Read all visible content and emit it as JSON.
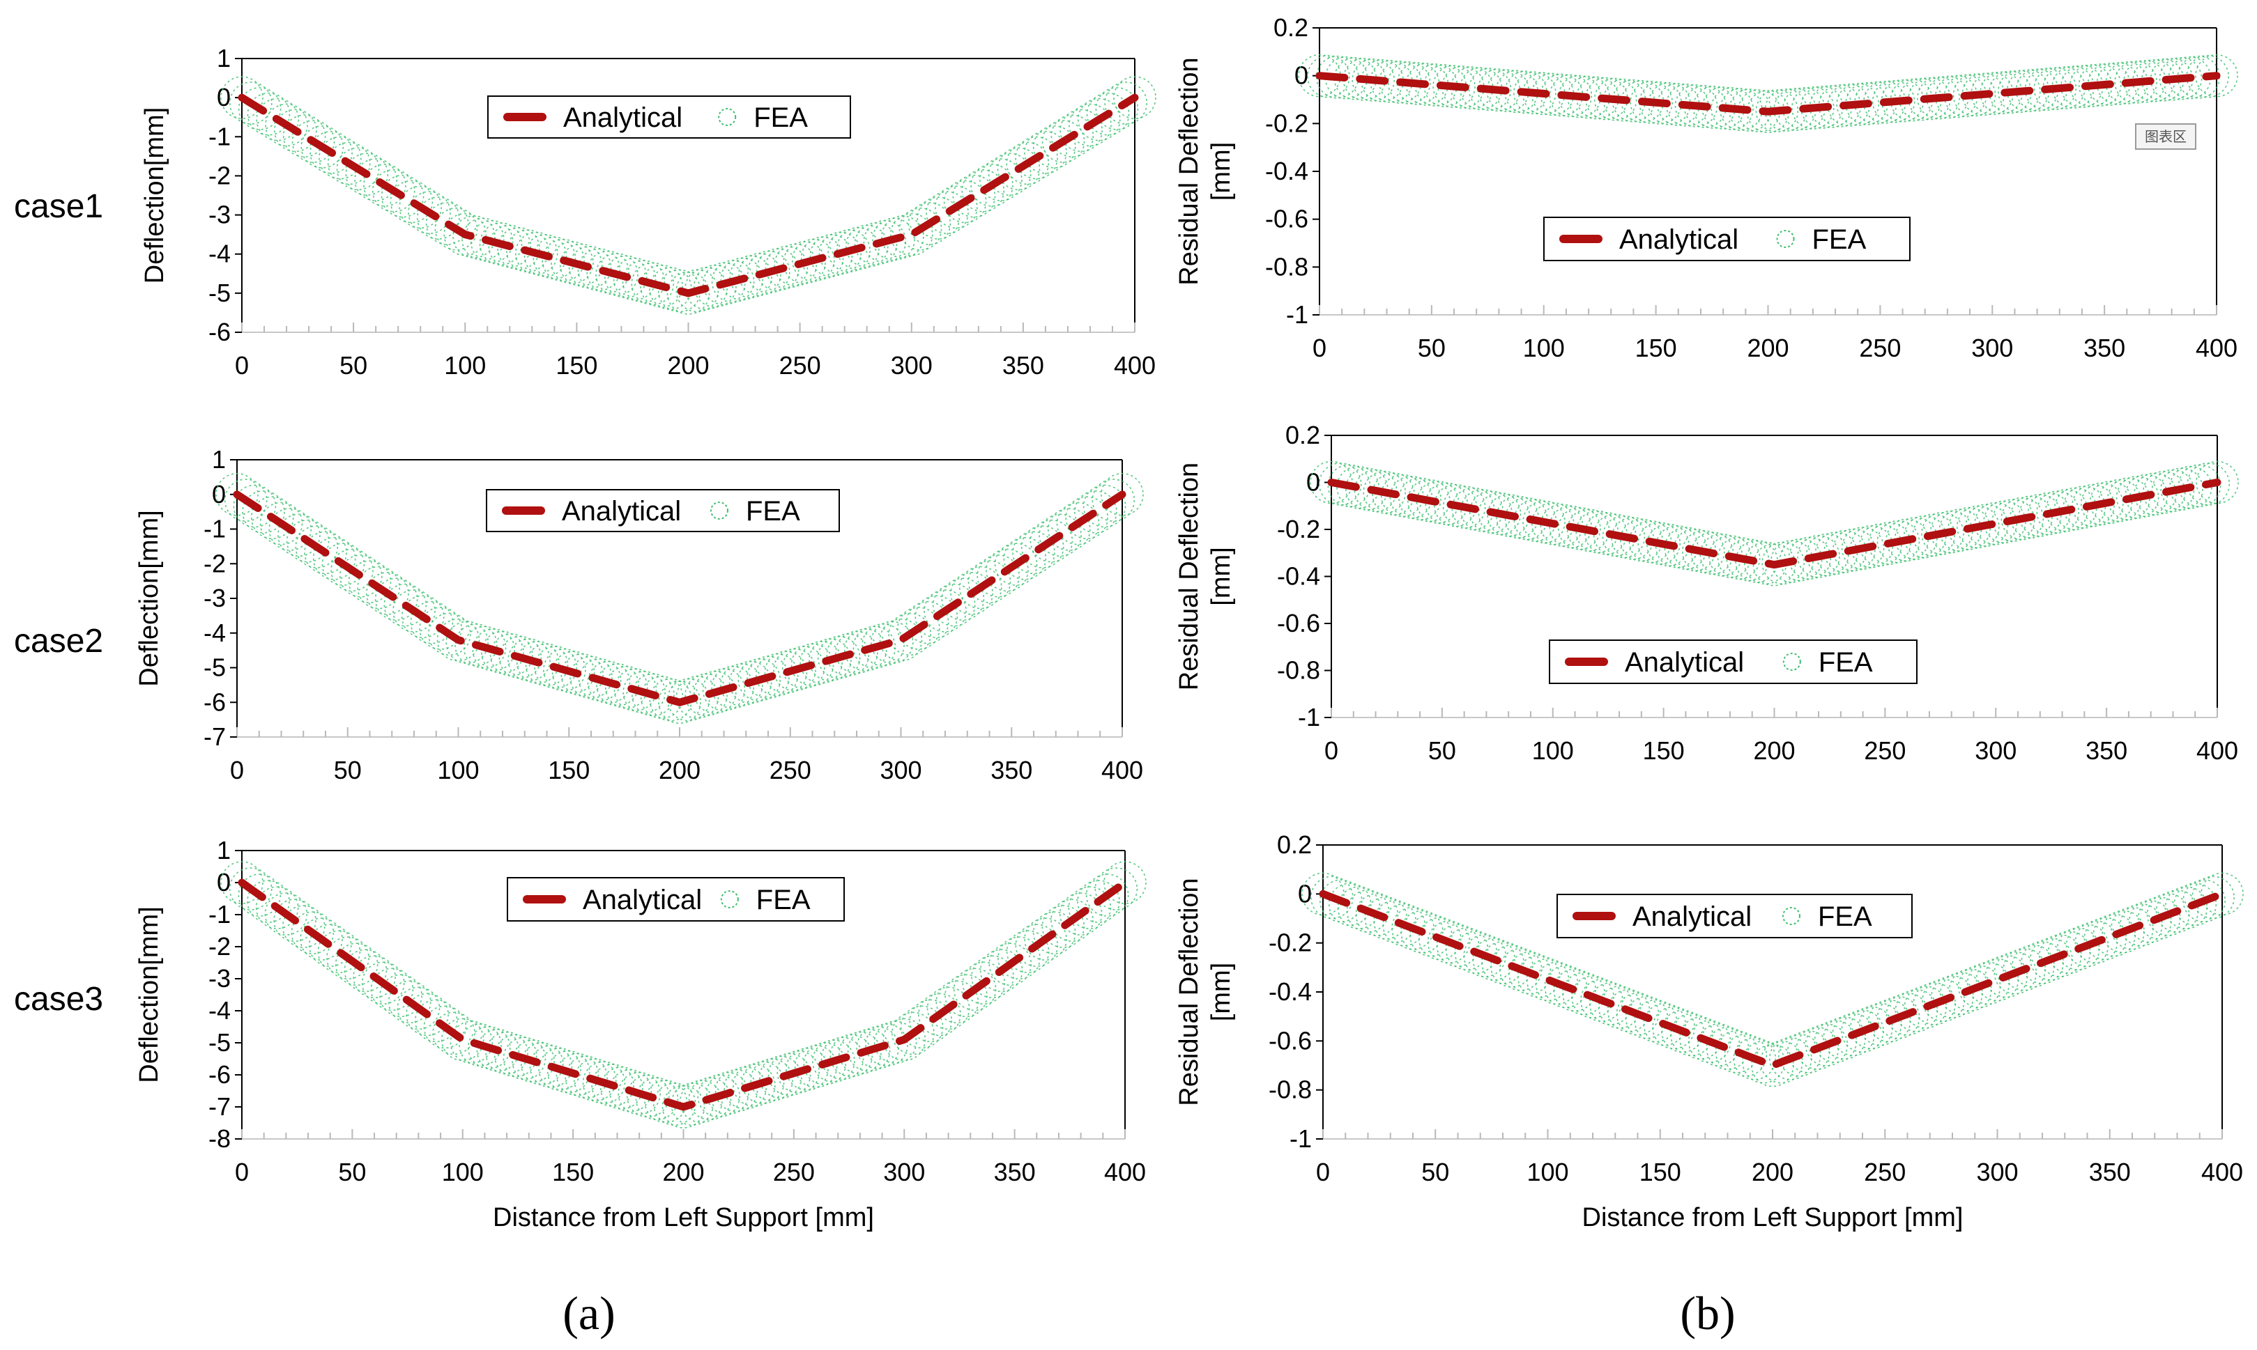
{
  "figure": {
    "row_labels": [
      "case1",
      "case2",
      "case3"
    ],
    "panel_labels": [
      "(a)",
      "(b)"
    ],
    "watermark": "图表区"
  },
  "colors": {
    "analytical": "#b01010",
    "fea": "#3dbf6e",
    "axis": "#000000",
    "background": "#ffffff"
  },
  "chart_data": [
    {
      "id": "a-case1",
      "type": "line",
      "row": "case1",
      "panel": "(a)",
      "xlabel": "",
      "ylabel": "Deflection[mm]",
      "xlim": [
        0,
        400
      ],
      "ylim": [
        -6,
        1
      ],
      "xticks": [
        0,
        50,
        100,
        150,
        200,
        250,
        300,
        350,
        400
      ],
      "yticks": [
        1,
        0,
        -1,
        -2,
        -3,
        -4,
        -5,
        -6
      ],
      "legend": [
        "Analytical",
        "FEA"
      ],
      "legend_position": "top-center",
      "series": [
        {
          "name": "Analytical",
          "style": "dashed",
          "x": [
            0,
            100,
            200,
            300,
            400
          ],
          "y": [
            0,
            -3.5,
            -5,
            -3.5,
            0
          ]
        },
        {
          "name": "FEA",
          "style": "circles",
          "x": [
            0,
            100,
            200,
            300,
            400
          ],
          "y": [
            0,
            -3.5,
            -5,
            -3.5,
            0
          ]
        }
      ]
    },
    {
      "id": "b-case1",
      "type": "line",
      "row": "case1",
      "panel": "(b)",
      "xlabel": "",
      "ylabel": "Residual Deflection [mm]",
      "xlim": [
        0,
        400
      ],
      "ylim": [
        -1,
        0.2
      ],
      "xticks": [
        0,
        50,
        100,
        150,
        200,
        250,
        300,
        350,
        400
      ],
      "yticks": [
        0.2,
        0,
        -0.2,
        -0.4,
        -0.6,
        -0.8,
        -1
      ],
      "legend": [
        "Analytical",
        "FEA"
      ],
      "legend_position": "center",
      "series": [
        {
          "name": "Analytical",
          "style": "dashed",
          "x": [
            0,
            200,
            400
          ],
          "y": [
            0,
            -0.15,
            0
          ]
        },
        {
          "name": "FEA",
          "style": "circles",
          "x": [
            0,
            200,
            400
          ],
          "y": [
            0,
            -0.15,
            0
          ]
        }
      ]
    },
    {
      "id": "a-case2",
      "type": "line",
      "row": "case2",
      "panel": "(a)",
      "xlabel": "",
      "ylabel": "Deflection[mm]",
      "xlim": [
        0,
        400
      ],
      "ylim": [
        -7,
        1
      ],
      "xticks": [
        0,
        50,
        100,
        150,
        200,
        250,
        300,
        350,
        400
      ],
      "yticks": [
        1,
        0,
        -1,
        -2,
        -3,
        -4,
        -5,
        -6,
        -7
      ],
      "legend": [
        "Analytical",
        "FEA"
      ],
      "legend_position": "top-center",
      "series": [
        {
          "name": "Analytical",
          "style": "dashed",
          "x": [
            0,
            100,
            200,
            300,
            400
          ],
          "y": [
            0,
            -4.2,
            -6,
            -4.2,
            0
          ]
        },
        {
          "name": "FEA",
          "style": "circles",
          "x": [
            0,
            100,
            200,
            300,
            400
          ],
          "y": [
            0,
            -4.2,
            -6,
            -4.2,
            0
          ]
        }
      ]
    },
    {
      "id": "b-case2",
      "type": "line",
      "row": "case2",
      "panel": "(b)",
      "xlabel": "",
      "ylabel": "Residual Deflection [mm]",
      "xlim": [
        0,
        400
      ],
      "ylim": [
        -1,
        0.2
      ],
      "xticks": [
        0,
        50,
        100,
        150,
        200,
        250,
        300,
        350,
        400
      ],
      "yticks": [
        0.2,
        0,
        -0.2,
        -0.4,
        -0.6,
        -0.8,
        -1
      ],
      "legend": [
        "Analytical",
        "FEA"
      ],
      "legend_position": "bottom-center",
      "series": [
        {
          "name": "Analytical",
          "style": "dashed",
          "x": [
            0,
            200,
            400
          ],
          "y": [
            0,
            -0.35,
            0
          ]
        },
        {
          "name": "FEA",
          "style": "circles",
          "x": [
            0,
            200,
            400
          ],
          "y": [
            0,
            -0.35,
            0
          ]
        }
      ]
    },
    {
      "id": "a-case3",
      "type": "line",
      "row": "case3",
      "panel": "(a)",
      "xlabel": "Distance from Left Support [mm]",
      "ylabel": "Deflection[mm]",
      "xlim": [
        0,
        400
      ],
      "ylim": [
        -8,
        1
      ],
      "xticks": [
        0,
        50,
        100,
        150,
        200,
        250,
        300,
        350,
        400
      ],
      "yticks": [
        1,
        0,
        -1,
        -2,
        -3,
        -4,
        -5,
        -6,
        -7,
        -8
      ],
      "legend": [
        "Analytical",
        "FEA"
      ],
      "legend_position": "top-center",
      "series": [
        {
          "name": "Analytical",
          "style": "dashed",
          "x": [
            0,
            100,
            200,
            300,
            400
          ],
          "y": [
            0,
            -4.9,
            -7,
            -4.9,
            0
          ]
        },
        {
          "name": "FEA",
          "style": "circles",
          "x": [
            0,
            100,
            200,
            300,
            400
          ],
          "y": [
            0,
            -4.9,
            -7,
            -4.9,
            0
          ]
        }
      ]
    },
    {
      "id": "b-case3",
      "type": "line",
      "row": "case3",
      "panel": "(b)",
      "xlabel": "Distance from Left Support [mm]",
      "ylabel": "Residual Deflection [mm]",
      "xlim": [
        0,
        400
      ],
      "ylim": [
        -1,
        0.2
      ],
      "xticks": [
        0,
        50,
        100,
        150,
        200,
        250,
        300,
        350,
        400
      ],
      "yticks": [
        0.2,
        0,
        -0.2,
        -0.4,
        -0.6,
        -0.8,
        -1
      ],
      "legend": [
        "Analytical",
        "FEA"
      ],
      "legend_position": "top-center",
      "series": [
        {
          "name": "Analytical",
          "style": "dashed",
          "x": [
            0,
            200,
            400
          ],
          "y": [
            0,
            -0.7,
            0
          ]
        },
        {
          "name": "FEA",
          "style": "circles",
          "x": [
            0,
            200,
            400
          ],
          "y": [
            0,
            -0.7,
            0
          ]
        }
      ]
    }
  ]
}
